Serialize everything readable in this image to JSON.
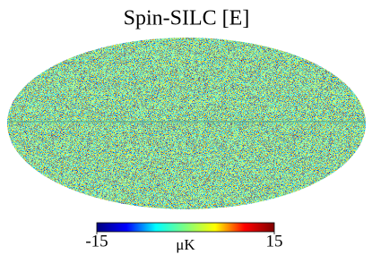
{
  "chart_data": {
    "type": "skymap",
    "title": "Spin-SILC [E]",
    "projection": "mollweide",
    "colorbar": {
      "label": "μK",
      "lim": [
        -15,
        15
      ],
      "ticks": [
        -15,
        15
      ],
      "colors": [
        "#00007f",
        "#0000ff",
        "#00ffff",
        "#7fff7f",
        "#ffff00",
        "#ff0000",
        "#7f0000"
      ]
    }
  }
}
